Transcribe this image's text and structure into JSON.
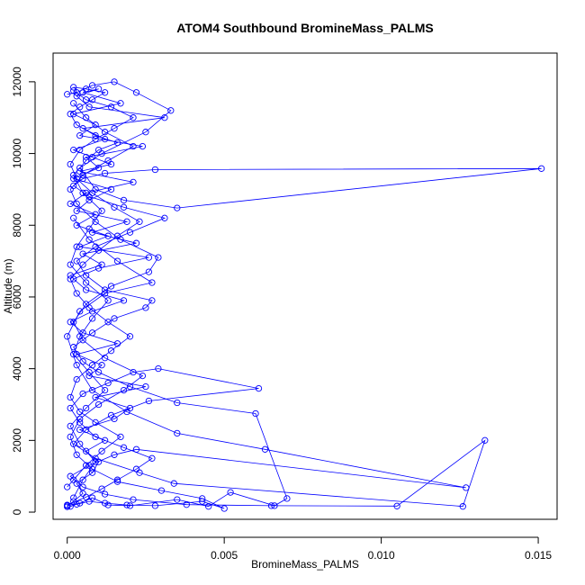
{
  "chart_data": {
    "type": "line",
    "title": "ATOM4 Southbound BromineMass_PALMS",
    "xlabel": "BromineMass_PALMS",
    "ylabel": "Altitude (m)",
    "xlim": [
      -0.00045,
      0.0156
    ],
    "ylim": [
      -200,
      12800
    ],
    "x_ticks": [
      0.0,
      0.005,
      0.01,
      0.015
    ],
    "x_tick_labels": [
      "0.000",
      "0.005",
      "0.010",
      "0.015"
    ],
    "y_ticks": [
      0,
      2000,
      4000,
      6000,
      8000,
      10000,
      12000
    ],
    "y_tick_labels": [
      "0",
      "2000",
      "4000",
      "6000",
      "8000",
      "10000",
      "12000"
    ],
    "series_color": "#0000ff",
    "marker": "open-circle",
    "grid": false,
    "series": [
      {
        "x": [
          0.0,
          0.0002,
          0.0005,
          0.0003,
          0.0008,
          0.001,
          0.0006,
          0.0012,
          0.0004,
          0.0015,
          0.002,
          0.0009,
          0.0025,
          0.0007,
          0.0011,
          0.0003,
          0.0016,
          0.0005,
          0.0001,
          0.0008,
          0.0018,
          0.0006,
          0.0002,
          0.001,
          0.0026,
          0.0004,
          0.0013,
          0.0003,
          0.0009,
          0.0001,
          0.0006,
          0.0021,
          0.0004,
          0.0014,
          0.0008,
          0.0002,
          0.0012,
          0.0005,
          0.0031,
          0.0007,
          0.0003,
          0.001,
          0.0005,
          0.0017,
          0.0002,
          0.0009,
          0.0004,
          0.0024,
          0.0006,
          0.001,
          0.0002,
          0.0014,
          0.0007,
          0.0003,
          0.0019,
          0.0008,
          0.0022,
          0.0005,
          0.0011,
          0.0001
        ],
        "y": [
          150,
          300,
          520,
          800,
          1100,
          1400,
          1700,
          2000,
          2300,
          2600,
          2900,
          3200,
          3500,
          3800,
          4100,
          4400,
          4700,
          5000,
          5300,
          5600,
          5900,
          6200,
          6500,
          6800,
          7100,
          7400,
          7700,
          8000,
          8300,
          8600,
          8900,
          9200,
          9500,
          9700,
          9900,
          10100,
          10400,
          10700,
          11000,
          11300,
          11600,
          11800,
          11700,
          11400,
          11100,
          10800,
          10500,
          10200,
          9900,
          9600,
          9300,
          9000,
          8700,
          8400,
          8100,
          7800,
          7500,
          7200,
          6900,
          6600
        ]
      },
      {
        "x": [
          0.0,
          0.0004,
          0.0008,
          0.0013,
          0.002,
          0.0035,
          0.0045,
          0.0052,
          0.0066,
          0.007,
          0.006,
          0.0035,
          0.002,
          0.001,
          0.0005,
          0.0002,
          0.0008,
          0.0015,
          0.0025,
          0.0027,
          0.0012,
          0.0006,
          0.0003,
          0.0009,
          0.002,
          0.0031,
          0.0018,
          0.0007,
          0.0002,
          0.0005,
          0.0012,
          0.0028,
          0.0151,
          0.0035,
          0.0018,
          0.0009,
          0.0004,
          0.0011,
          0.0025,
          0.0033,
          0.0022,
          0.0015,
          0.0008,
          0.0003,
          0.0
        ],
        "y": [
          180,
          250,
          400,
          200,
          180,
          350,
          160,
          550,
          180,
          380,
          2750,
          3050,
          3500,
          3900,
          4200,
          4600,
          5000,
          5400,
          5700,
          5900,
          6200,
          6600,
          7000,
          7400,
          7800,
          8200,
          8500,
          8800,
          9100,
          9300,
          9450,
          9550,
          9580,
          8480,
          8700,
          9000,
          9600,
          10000,
          10600,
          11200,
          11700,
          12000,
          11900,
          11700,
          11650
        ]
      },
      {
        "x": [
          0.0,
          0.0006,
          0.0011,
          0.0016,
          0.0022,
          0.0027,
          0.0018,
          0.0009,
          0.0004,
          0.0001,
          0.0005,
          0.0013,
          0.0021,
          0.0029,
          0.0061,
          0.0026,
          0.0014,
          0.0006,
          0.0002,
          0.0009,
          0.0023,
          0.0034,
          0.0126,
          0.0133,
          0.0105,
          0.0065,
          0.0038,
          0.0021,
          0.0012,
          0.0005,
          0.0001,
          0.0007,
          0.0015,
          0.0022,
          0.0127,
          0.0063,
          0.0035,
          0.0019,
          0.0008,
          0.0003,
          0.0,
          0.0004,
          0.0012,
          0.0027,
          0.0016,
          0.0007,
          0.0002
        ],
        "y": [
          200,
          420,
          650,
          900,
          1200,
          1500,
          1800,
          2100,
          2500,
          2900,
          3300,
          3600,
          3900,
          4000,
          3450,
          3100,
          2700,
          2300,
          1900,
          1500,
          1100,
          800,
          160,
          2000,
          170,
          180,
          210,
          350,
          500,
          700,
          1000,
          1300,
          1600,
          1750,
          680,
          1750,
          2200,
          2800,
          3400,
          4100,
          4900,
          5600,
          6100,
          6400,
          7000,
          7600,
          8200
        ]
      },
      {
        "x": [
          0.0001,
          0.0003,
          0.0007,
          0.0012,
          0.0019,
          0.0028,
          0.0043,
          0.005,
          0.0043,
          0.003,
          0.0016,
          0.0008,
          0.0003,
          0.0001,
          0.0004,
          0.001,
          0.0018,
          0.0024,
          0.0012,
          0.0005,
          0.0002,
          0.0006,
          0.0014,
          0.0026,
          0.0029,
          0.0017,
          0.0009,
          0.0003,
          0.0001,
          0.0005,
          0.0013,
          0.0021,
          0.0012,
          0.0006,
          0.0002
        ],
        "y": [
          160,
          220,
          300,
          250,
          200,
          180,
          300,
          100,
          380,
          600,
          850,
          1200,
          1600,
          2100,
          2600,
          3000,
          3400,
          3800,
          4300,
          4800,
          5300,
          5800,
          6300,
          6700,
          7100,
          7600,
          8100,
          8600,
          9000,
          9400,
          9800,
          10200,
          10600,
          11000,
          11400
        ]
      },
      {
        "x": [
          0.0,
          0.0002,
          0.0006,
          0.0011,
          0.0017,
          0.0009,
          0.0004,
          0.0001,
          0.0003,
          0.0008,
          0.0014,
          0.002,
          0.0013,
          0.0007,
          0.0003,
          0.0001,
          0.0005,
          0.001,
          0.0016,
          0.0023,
          0.0015,
          0.0008,
          0.0003,
          0.0001,
          0.0004,
          0.0009,
          0.0015,
          0.0021,
          0.0014,
          0.0006,
          0.0002
        ],
        "y": [
          700,
          900,
          1300,
          1700,
          2100,
          2500,
          2800,
          3200,
          3700,
          4100,
          4500,
          4900,
          5300,
          5700,
          6100,
          6500,
          6900,
          7300,
          7700,
          8100,
          8500,
          8900,
          9300,
          9700,
          10100,
          10400,
          10700,
          11000,
          11300,
          11500,
          11750
        ]
      },
      {
        "x": [
          0.0002,
          0.0005,
          0.0009,
          0.0004,
          0.0001,
          0.0006,
          0.0012,
          0.0007,
          0.0002,
          0.0004,
          0.0008,
          0.0013,
          0.0006,
          0.0001,
          0.0003,
          0.0007,
          0.0011,
          0.0005,
          0.0002,
          0.0006,
          0.001,
          0.0016,
          0.0009,
          0.0003,
          0.0001,
          0.0004,
          0.0008,
          0.0012,
          0.0006,
          0.0002
        ],
        "y": [
          400,
          900,
          1400,
          1900,
          2400,
          2900,
          3400,
          3900,
          4400,
          4900,
          5400,
          5900,
          6400,
          6900,
          7400,
          7900,
          8400,
          8900,
          9400,
          9800,
          10100,
          10300,
          10500,
          10800,
          11100,
          11300,
          11500,
          11700,
          11800,
          11850
        ]
      }
    ]
  }
}
